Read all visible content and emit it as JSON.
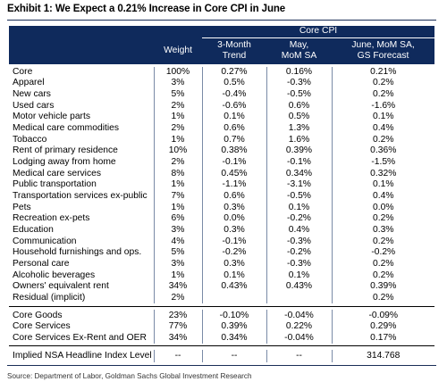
{
  "title": "Exhibit 1: We Expect a 0.21% Increase in Core CPI in June",
  "header": {
    "group": "Core CPI",
    "weight": "Weight",
    "trend": [
      "3-Month",
      "Trend"
    ],
    "may": [
      "May,",
      "MoM SA"
    ],
    "june": [
      "June, MoM SA,",
      "GS Forecast"
    ]
  },
  "rows": [
    {
      "name": "Core",
      "weight": "100%",
      "trend": "0.27%",
      "may": "0.16%",
      "june": "0.21%"
    },
    {
      "name": "Apparel",
      "weight": "3%",
      "trend": "0.5%",
      "may": "-0.3%",
      "june": "0.2%"
    },
    {
      "name": "New cars",
      "weight": "5%",
      "trend": "-0.4%",
      "may": "-0.5%",
      "june": "0.2%"
    },
    {
      "name": "Used cars",
      "weight": "2%",
      "trend": "-0.6%",
      "may": "0.6%",
      "june": "-1.6%"
    },
    {
      "name": "Motor vehicle parts",
      "weight": "1%",
      "trend": "0.1%",
      "may": "0.5%",
      "june": "0.1%"
    },
    {
      "name": "Medical care commodities",
      "weight": "2%",
      "trend": "0.6%",
      "may": "1.3%",
      "june": "0.4%"
    },
    {
      "name": "Tobacco",
      "weight": "1%",
      "trend": "0.7%",
      "may": "1.6%",
      "june": "0.2%"
    },
    {
      "name": "Rent of primary residence",
      "weight": "10%",
      "trend": "0.38%",
      "may": "0.39%",
      "june": "0.36%"
    },
    {
      "name": "Lodging away from home",
      "weight": "2%",
      "trend": "-0.1%",
      "may": "-0.1%",
      "june": "-1.5%"
    },
    {
      "name": "Medical care services",
      "weight": "8%",
      "trend": "0.45%",
      "may": "0.34%",
      "june": "0.32%"
    },
    {
      "name": "Public transportation",
      "weight": "1%",
      "trend": "-1.1%",
      "may": "-3.1%",
      "june": "0.1%"
    },
    {
      "name": "Transportation services ex-public",
      "weight": "7%",
      "trend": "0.6%",
      "may": "-0.5%",
      "june": "0.4%"
    },
    {
      "name": "Pets",
      "weight": "1%",
      "trend": "0.3%",
      "may": "0.1%",
      "june": "0.0%"
    },
    {
      "name": "Recreation ex-pets",
      "weight": "6%",
      "trend": "0.0%",
      "may": "-0.2%",
      "june": "0.2%"
    },
    {
      "name": "Education",
      "weight": "3%",
      "trend": "0.3%",
      "may": "0.4%",
      "june": "0.3%"
    },
    {
      "name": "Communication",
      "weight": "4%",
      "trend": "-0.1%",
      "may": "-0.3%",
      "june": "0.2%"
    },
    {
      "name": "Household furnishings and ops.",
      "weight": "5%",
      "trend": "-0.2%",
      "may": "-0.2%",
      "june": "-0.2%"
    },
    {
      "name": "Personal care",
      "weight": "3%",
      "trend": "0.3%",
      "may": "-0.3%",
      "june": "0.2%"
    },
    {
      "name": "Alcoholic beverages",
      "weight": "1%",
      "trend": "0.1%",
      "may": "0.1%",
      "june": "0.2%"
    },
    {
      "name": "Owners' equivalent rent",
      "weight": "34%",
      "trend": "0.43%",
      "may": "0.43%",
      "june": "0.39%"
    },
    {
      "name": "Residual (implicit)",
      "weight": "2%",
      "trend": "",
      "may": "",
      "june": "0.2%"
    }
  ],
  "summary_rows": [
    {
      "name": "Core Goods",
      "weight": "23%",
      "trend": "-0.10%",
      "may": "-0.04%",
      "june": "-0.09%"
    },
    {
      "name": "Core Services",
      "weight": "77%",
      "trend": "0.39%",
      "may": "0.22%",
      "june": "0.29%"
    },
    {
      "name": "Core Services Ex-Rent and OER",
      "weight": "34%",
      "trend": "0.34%",
      "may": "-0.04%",
      "june": "0.17%"
    }
  ],
  "index_row": {
    "name": "Implied NSA Headline Index Level",
    "weight": "--",
    "trend": "--",
    "may": "--",
    "june": "314.768"
  },
  "source": "Source: Department of Labor, Goldman Sachs Global Investment Research",
  "colors": {
    "header_bg": "#0f2a5c",
    "header_text": "#ffffff"
  }
}
